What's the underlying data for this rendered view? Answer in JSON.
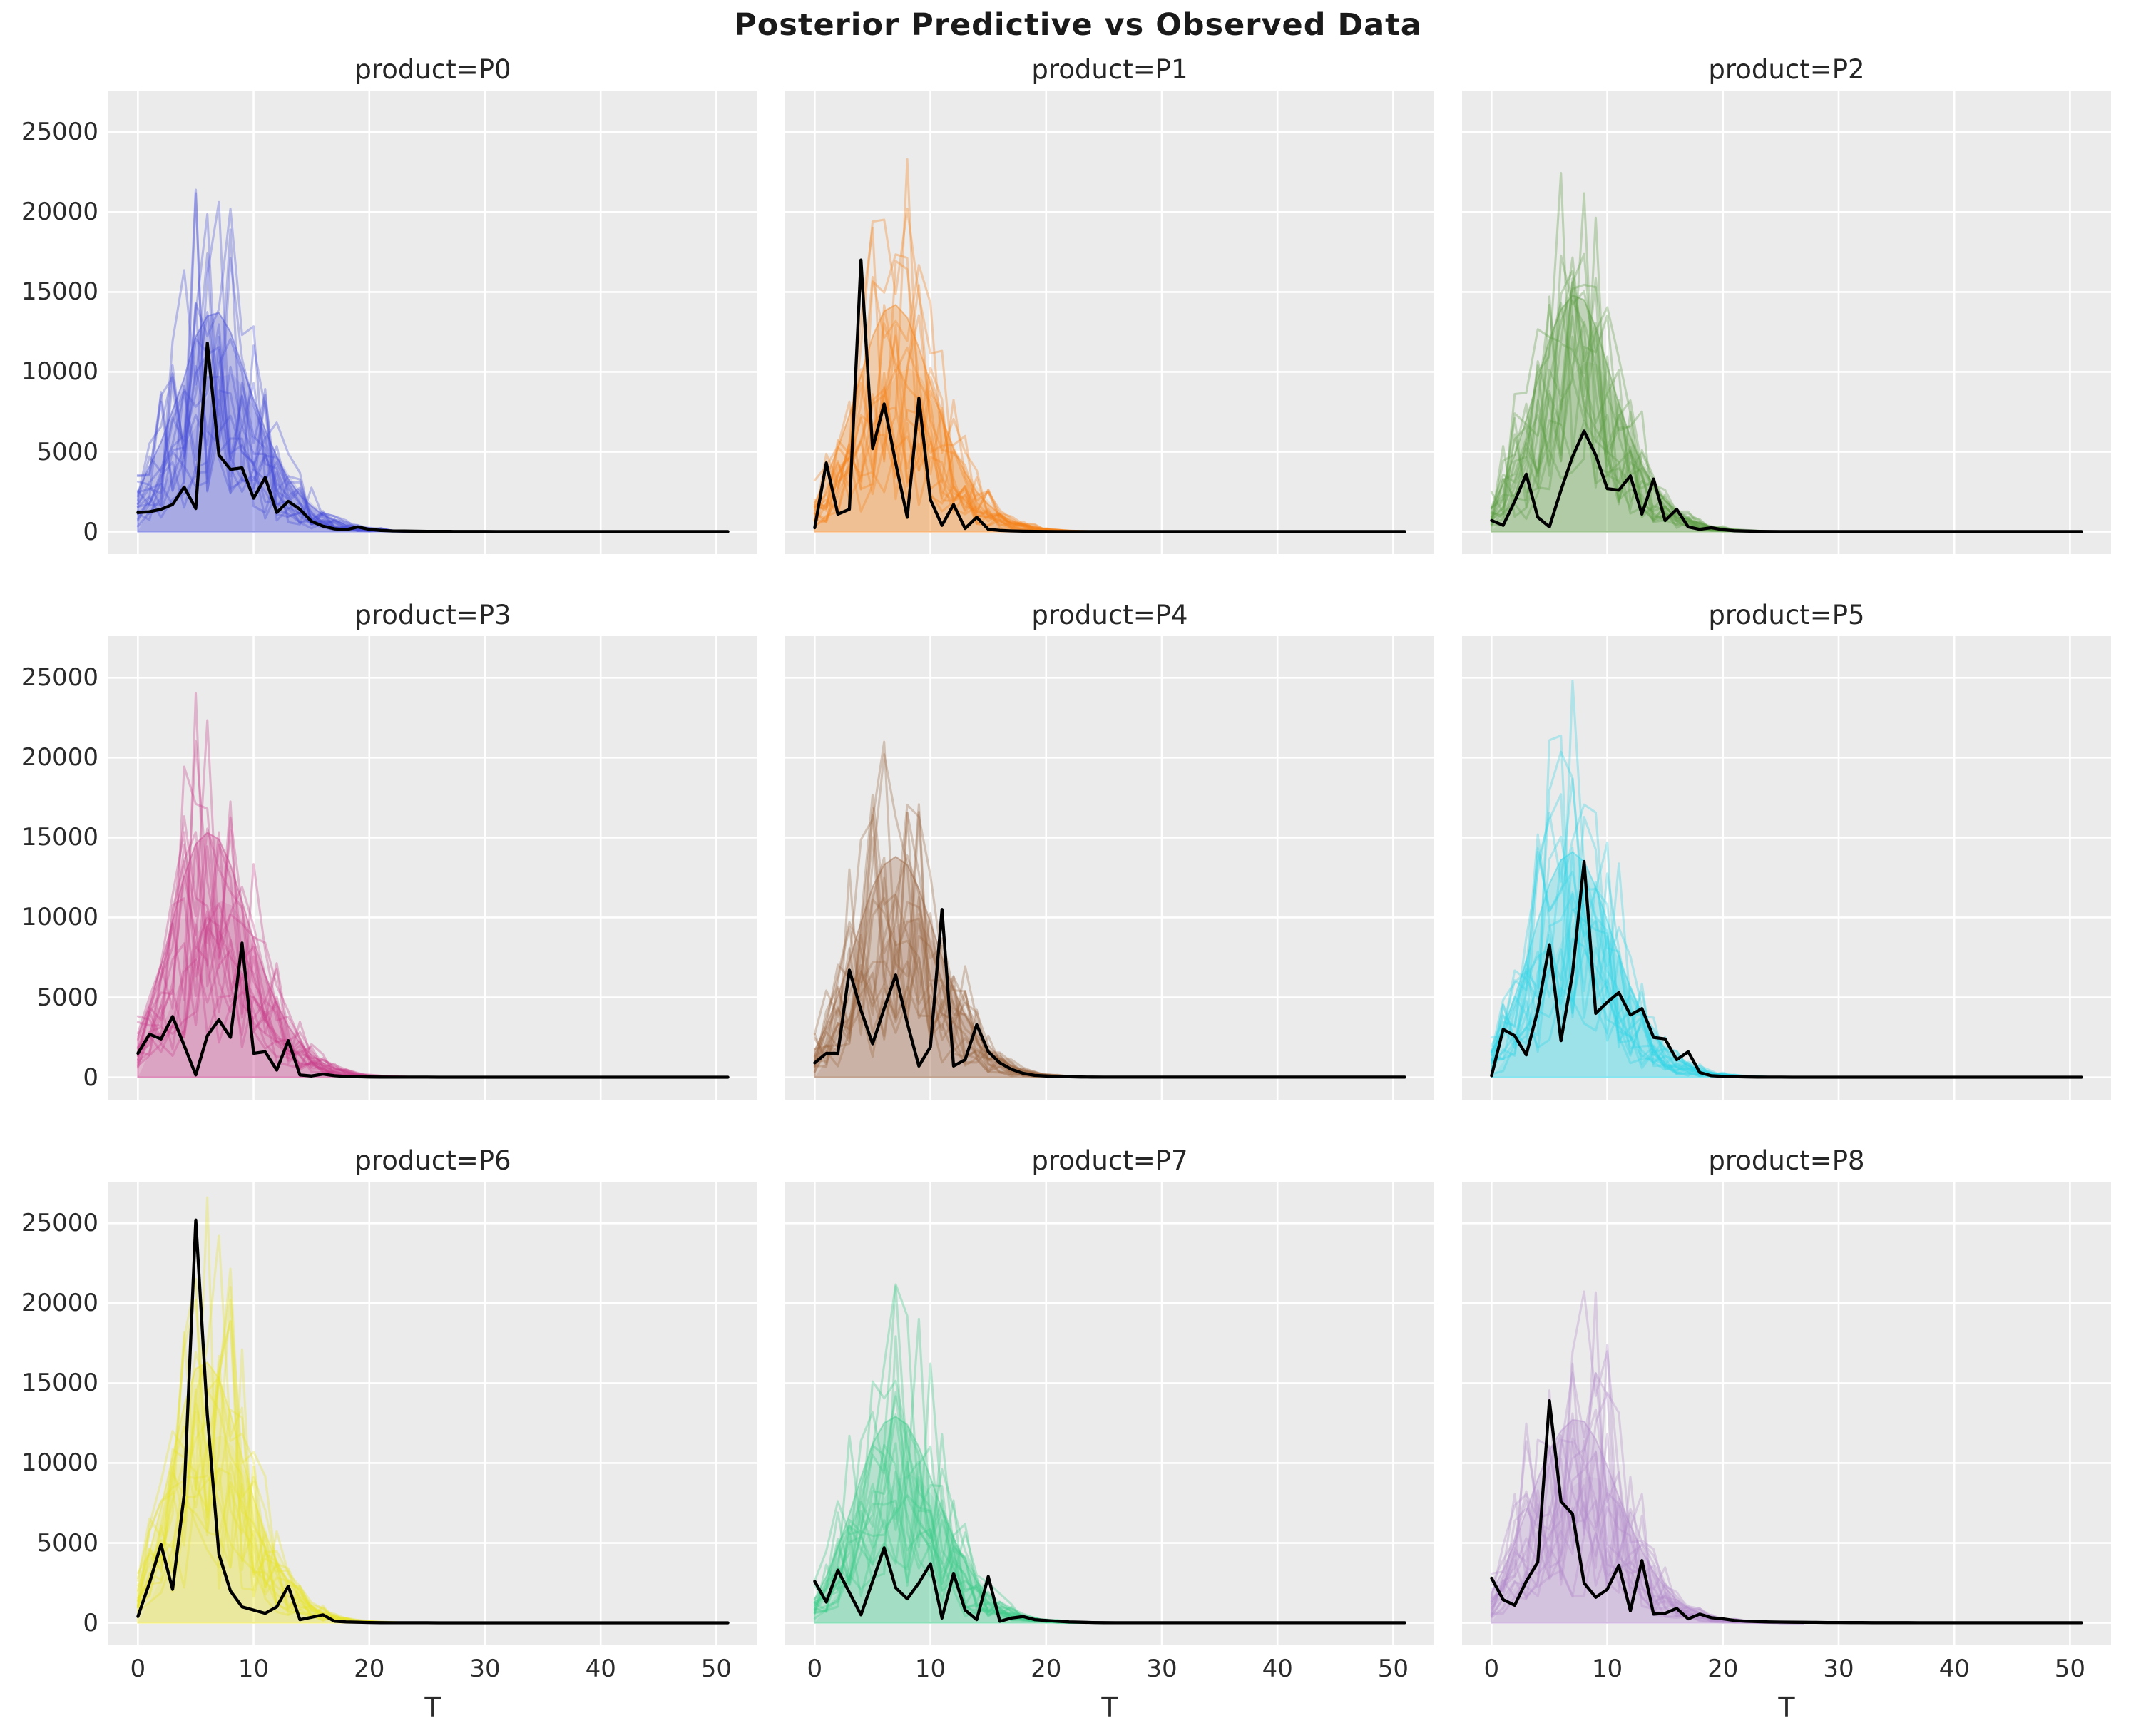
{
  "figure": {
    "suptitle": "Posterior Predictive vs Observed Data",
    "background": "#ffffff",
    "panel_background": "#ebebeb",
    "grid_color": "#ffffff",
    "observed_color": "#000000",
    "text_color": "#2b2b2b"
  },
  "axes": {
    "xlabel": "T",
    "x_tick_values": [
      0,
      10,
      20,
      30,
      40,
      50
    ],
    "x_tick_labels": [
      "0",
      "10",
      "20",
      "30",
      "40",
      "50"
    ],
    "y_tick_values": [
      0,
      5000,
      10000,
      15000,
      20000,
      25000
    ],
    "y_tick_labels": [
      "0",
      "5000",
      "10000",
      "15000",
      "20000",
      "25000"
    ],
    "xlim": [
      -2.55,
      53.55
    ],
    "ylim": [
      -1400,
      27600
    ],
    "grid": true
  },
  "chart_data": [
    {
      "type": "line",
      "product": "P0",
      "title": "product=P0",
      "color": "#4a4fd8",
      "x_start": 0,
      "x_step": 1,
      "n_samples": 17,
      "seed": 11,
      "band_upper": [
        2500,
        4100,
        5600,
        7600,
        9600,
        12200,
        13500,
        13700,
        12500,
        10400,
        8300,
        6400,
        4700,
        3300,
        2300,
        1600,
        1050,
        700,
        450,
        300,
        200,
        130,
        80,
        50,
        30,
        0
      ],
      "observed": [
        1200,
        1250,
        1400,
        1700,
        2800,
        1450,
        11800,
        4800,
        3900,
        4000,
        2100,
        3400,
        1200,
        1900,
        1400,
        650,
        350,
        180,
        120,
        300,
        150,
        80,
        50,
        40,
        30,
        25,
        20,
        18,
        15,
        14,
        13,
        12,
        11,
        10,
        10,
        10,
        10,
        10,
        10,
        10,
        10,
        10,
        10,
        10,
        10,
        10,
        10,
        10,
        10,
        10,
        10,
        10
      ]
    },
    {
      "type": "line",
      "product": "P1",
      "title": "product=P1",
      "color": "#f5831a",
      "x_start": 0,
      "x_step": 1,
      "n_samples": 17,
      "seed": 23,
      "band_upper": [
        1800,
        3400,
        5200,
        7300,
        9800,
        12200,
        13800,
        14200,
        13400,
        11500,
        9300,
        7100,
        5200,
        3700,
        2500,
        1700,
        1100,
        700,
        450,
        280,
        170,
        100,
        60,
        35,
        20,
        0
      ],
      "observed": [
        250,
        4300,
        1100,
        1400,
        17000,
        5200,
        8000,
        4300,
        900,
        8350,
        2000,
        400,
        1700,
        200,
        900,
        150,
        80,
        50,
        30,
        20,
        15,
        12,
        10,
        10,
        10,
        10,
        8,
        8,
        8,
        8,
        8,
        8,
        8,
        8,
        8,
        8,
        8,
        8,
        8,
        8,
        8,
        8,
        8,
        8,
        8,
        8,
        8,
        8,
        8,
        8,
        8,
        8
      ]
    },
    {
      "type": "line",
      "product": "P2",
      "title": "product=P2",
      "color": "#5f9e47",
      "x_start": 0,
      "x_step": 1,
      "n_samples": 17,
      "seed": 37,
      "band_upper": [
        1500,
        3000,
        4800,
        7000,
        9500,
        12000,
        13900,
        14800,
        14500,
        12800,
        10400,
        8000,
        5900,
        4200,
        2900,
        1950,
        1280,
        820,
        520,
        320,
        195,
        115,
        70,
        40,
        20,
        0
      ],
      "observed": [
        700,
        400,
        1900,
        3600,
        900,
        300,
        2600,
        4700,
        6300,
        4800,
        2700,
        2600,
        3500,
        1100,
        3300,
        700,
        1400,
        300,
        150,
        250,
        120,
        60,
        40,
        25,
        15,
        10,
        8,
        8,
        8,
        8,
        8,
        8,
        8,
        8,
        8,
        8,
        8,
        8,
        8,
        8,
        8,
        8,
        8,
        8,
        8,
        8,
        8,
        8,
        8,
        8,
        8,
        8
      ]
    },
    {
      "type": "line",
      "product": "P3",
      "title": "product=P3",
      "color": "#c8418c",
      "x_start": 0,
      "x_step": 1,
      "n_samples": 17,
      "seed": 41,
      "band_upper": [
        2600,
        4600,
        7000,
        9800,
        12600,
        14600,
        15300,
        14900,
        13300,
        11000,
        8600,
        6400,
        4600,
        3200,
        2150,
        1400,
        900,
        560,
        340,
        200,
        120,
        70,
        40,
        25,
        15,
        0
      ],
      "observed": [
        1500,
        2700,
        2400,
        3800,
        2000,
        150,
        2600,
        3600,
        2500,
        8400,
        1500,
        1600,
        450,
        2300,
        150,
        80,
        200,
        100,
        50,
        30,
        20,
        15,
        10,
        10,
        8,
        8,
        6,
        6,
        6,
        6,
        6,
        6,
        6,
        6,
        6,
        6,
        6,
        6,
        6,
        6,
        6,
        6,
        6,
        6,
        6,
        6,
        6,
        6,
        6,
        6,
        6,
        6
      ]
    },
    {
      "type": "line",
      "product": "P4",
      "title": "product=P4",
      "color": "#9c6644",
      "x_start": 0,
      "x_step": 1,
      "n_samples": 17,
      "seed": 53,
      "band_upper": [
        1700,
        3200,
        5100,
        7300,
        9700,
        11900,
        13300,
        13800,
        13300,
        11800,
        9700,
        7500,
        5500,
        3900,
        2650,
        1750,
        1130,
        720,
        450,
        270,
        160,
        95,
        55,
        30,
        18,
        0
      ],
      "observed": [
        900,
        1500,
        1500,
        6700,
        4200,
        2100,
        4300,
        6400,
        3400,
        700,
        1900,
        10500,
        700,
        1100,
        3300,
        1600,
        900,
        500,
        250,
        120,
        80,
        50,
        30,
        20,
        15,
        10,
        8,
        8,
        8,
        8,
        8,
        8,
        8,
        8,
        8,
        8,
        8,
        8,
        8,
        8,
        8,
        8,
        8,
        8,
        8,
        8,
        8,
        8,
        8,
        8,
        8,
        8
      ]
    },
    {
      "type": "line",
      "product": "P5",
      "title": "product=P5",
      "color": "#30d5e8",
      "x_start": 0,
      "x_step": 1,
      "n_samples": 17,
      "seed": 67,
      "band_upper": [
        1600,
        3100,
        5000,
        7300,
        9800,
        12100,
        13600,
        14100,
        13500,
        11900,
        9800,
        7600,
        5600,
        3950,
        2700,
        1800,
        1170,
        740,
        460,
        280,
        170,
        100,
        60,
        35,
        20,
        0
      ],
      "observed": [
        100,
        3000,
        2600,
        1400,
        4200,
        8300,
        2300,
        6500,
        13500,
        4000,
        4700,
        5300,
        3900,
        4300,
        2500,
        2400,
        1100,
        1600,
        300,
        100,
        60,
        40,
        25,
        15,
        10,
        8,
        6,
        6,
        6,
        6,
        6,
        6,
        6,
        6,
        6,
        6,
        6,
        6,
        6,
        6,
        6,
        6,
        6,
        6,
        6,
        6,
        6,
        6,
        6,
        6,
        6,
        6
      ]
    },
    {
      "type": "line",
      "product": "P6",
      "title": "product=P6",
      "color": "#e8e432",
      "x_start": 0,
      "x_step": 1,
      "n_samples": 17,
      "seed": 71,
      "band_upper": [
        2200,
        4400,
        7200,
        10400,
        13600,
        15900,
        16300,
        15300,
        13100,
        10400,
        7800,
        5600,
        3850,
        2550,
        1650,
        1050,
        650,
        400,
        240,
        145,
        85,
        50,
        30,
        18,
        10,
        0
      ],
      "observed": [
        400,
        2500,
        4900,
        2100,
        8000,
        25200,
        13000,
        4300,
        2000,
        1000,
        800,
        600,
        1000,
        2300,
        200,
        350,
        500,
        100,
        60,
        40,
        25,
        15,
        10,
        8,
        8,
        8,
        6,
        6,
        6,
        6,
        6,
        6,
        6,
        6,
        6,
        6,
        6,
        6,
        6,
        6,
        6,
        6,
        6,
        6,
        6,
        6,
        6,
        6,
        6,
        6,
        6,
        6
      ]
    },
    {
      "type": "line",
      "product": "P7",
      "title": "product=P7",
      "color": "#3ecb8a",
      "x_start": 0,
      "x_step": 1,
      "n_samples": 17,
      "seed": 83,
      "band_upper": [
        1500,
        2900,
        4700,
        6800,
        9100,
        11200,
        12500,
        12900,
        12400,
        11000,
        9100,
        7100,
        5300,
        3800,
        2600,
        1750,
        1140,
        730,
        460,
        285,
        175,
        105,
        60,
        35,
        20,
        0
      ],
      "observed": [
        2600,
        1300,
        3300,
        1900,
        500,
        2600,
        4700,
        2200,
        1500,
        2500,
        3700,
        300,
        3100,
        800,
        200,
        2900,
        100,
        300,
        400,
        200,
        150,
        100,
        60,
        40,
        25,
        15,
        8,
        8,
        8,
        8,
        8,
        8,
        8,
        8,
        8,
        8,
        8,
        8,
        8,
        8,
        8,
        8,
        8,
        8,
        8,
        8,
        8,
        8,
        8,
        8,
        8,
        8
      ]
    },
    {
      "type": "line",
      "product": "P8",
      "title": "product=P8",
      "color": "#b48ccc",
      "x_start": 0,
      "x_step": 1,
      "n_samples": 17,
      "seed": 97,
      "band_upper": [
        1900,
        3300,
        5000,
        7000,
        9000,
        10800,
        12000,
        12700,
        12600,
        11500,
        9800,
        7900,
        6100,
        4500,
        3200,
        2200,
        1450,
        950,
        600,
        380,
        240,
        150,
        90,
        55,
        30,
        0
      ],
      "observed": [
        2800,
        1450,
        1100,
        2600,
        3800,
        13900,
        7600,
        6800,
        2500,
        1600,
        2100,
        3600,
        750,
        3900,
        550,
        600,
        900,
        250,
        550,
        320,
        250,
        150,
        100,
        80,
        60,
        50,
        40,
        35,
        30,
        25,
        22,
        20,
        18,
        16,
        15,
        14,
        13,
        12,
        11,
        10,
        10,
        10,
        10,
        10,
        10,
        10,
        10,
        10,
        10,
        10,
        10,
        10
      ]
    }
  ]
}
